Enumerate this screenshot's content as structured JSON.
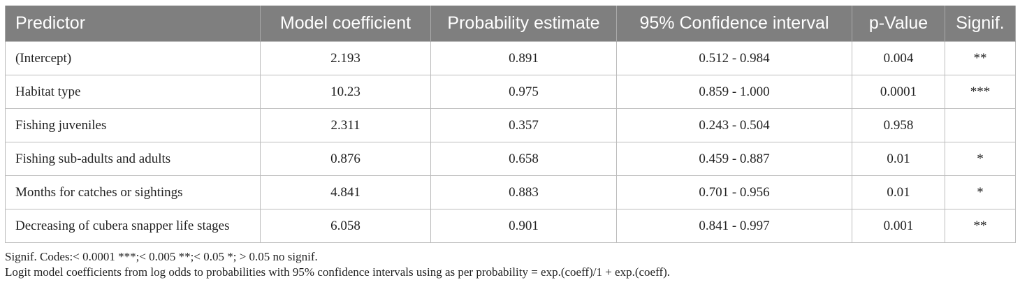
{
  "table": {
    "headers": [
      "Predictor",
      "Model coefficient",
      "Probability estimate",
      "95% Confidence interval",
      "p-Value",
      "Signif."
    ],
    "rows": [
      [
        "(Intercept)",
        "2.193",
        "0.891",
        "0.512 - 0.984",
        "0.004",
        "**"
      ],
      [
        "Habitat type",
        "10.23",
        "0.975",
        "0.859 - 1.000",
        "0.0001",
        "***"
      ],
      [
        "Fishing juveniles",
        "2.311",
        "0.357",
        "0.243 - 0.504",
        "0.958",
        ""
      ],
      [
        "Fishing sub-adults and adults",
        "0.876",
        "0.658",
        "0.459 - 0.887",
        "0.01",
        "*"
      ],
      [
        "Months for catches or sightings",
        "4.841",
        "0.883",
        "0.701 - 0.956",
        "0.01",
        "*"
      ],
      [
        "Decreasing of cubera snapper life stages",
        "6.058",
        "0.901",
        "0.841 - 0.997",
        "0.001",
        "**"
      ]
    ]
  },
  "footnotes": {
    "codes": "Signif. Codes:< 0.0001 ***;< 0.005 **;< 0.05 *; > 0.05 no signif.",
    "logit": "Logit model coefficients from log odds to probabilities with 95% confidence intervals using as per probability = exp.(coeff)/1 + exp.(coeff)."
  },
  "colors": {
    "header_bg": "#7f7f7f",
    "header_text": "#ffffff",
    "border": "#bcbcbc"
  }
}
